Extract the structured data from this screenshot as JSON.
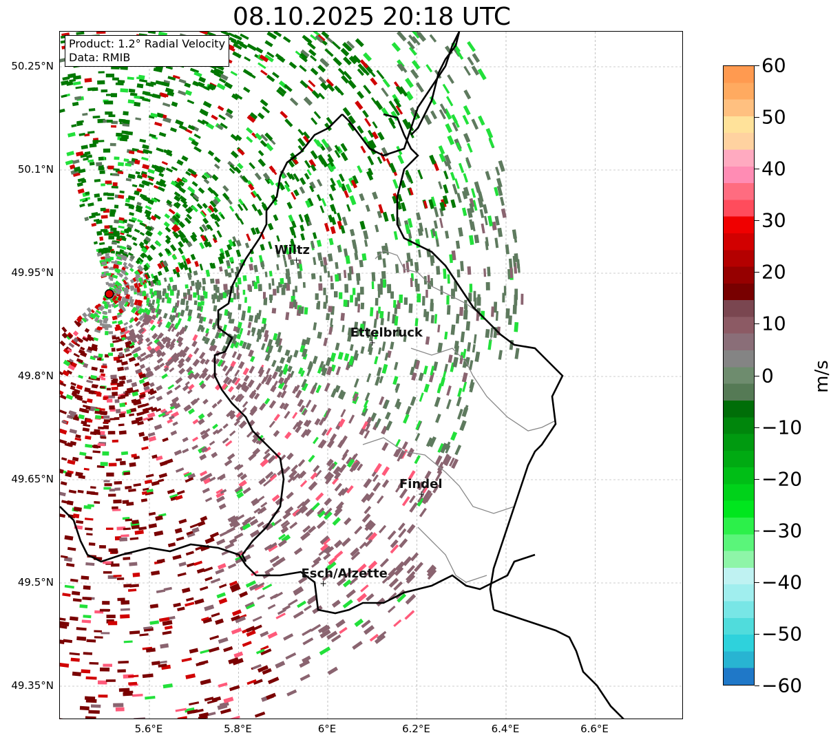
{
  "title": "08.10.2025 20:18 UTC",
  "info": {
    "product": "Product: 1.2° Radial Velocity",
    "data": "Data: RMIB"
  },
  "axes": {
    "lat_ticks": [
      "50.25°N",
      "50.1°N",
      "49.95°N",
      "49.8°N",
      "49.65°N",
      "49.5°N",
      "49.35°N"
    ],
    "lon_ticks": [
      "5.6°E",
      "5.8°E",
      "6°E",
      "6.2°E",
      "6.4°E",
      "6.6°E"
    ]
  },
  "colorbar": {
    "unit": "m/s",
    "min": -60,
    "max": 60,
    "tick_labels": [
      "60",
      "50",
      "40",
      "30",
      "20",
      "10",
      "0",
      "−10",
      "−20",
      "−30",
      "−40",
      "−50",
      "−60"
    ],
    "colors": [
      "#1f78c8",
      "#28b4d2",
      "#2ed2dc",
      "#50dcdc",
      "#78e6e6",
      "#a0eeee",
      "#bff2f2",
      "#8ef5a8",
      "#5af57a",
      "#2cf04a",
      "#00e61e",
      "#00d21a",
      "#00be16",
      "#00aa12",
      "#009a10",
      "#00860c",
      "#006e08",
      "#557a55",
      "#6e8c6e",
      "#848484",
      "#8a6e78",
      "#8c5a64",
      "#7a4650",
      "#780000",
      "#960000",
      "#b40000",
      "#d20000",
      "#f00000",
      "#ff4c5c",
      "#ff6c80",
      "#ff8cb4",
      "#ffaac0",
      "#ffd2a0",
      "#ffe29a",
      "#ffc080",
      "#ffaa60",
      "#ff9a50"
    ]
  },
  "cities": [
    {
      "name": "Wiltz",
      "lon": 5.93,
      "lat": 49.97
    },
    {
      "name": "Ettelbruck",
      "lon": 6.1,
      "lat": 49.85
    },
    {
      "name": "Findel",
      "lon": 6.21,
      "lat": 49.63
    },
    {
      "name": "Esch/Alzette",
      "lon": 5.99,
      "lat": 49.5
    }
  ],
  "radar_site": {
    "lon": 5.51,
    "lat": 49.92
  },
  "palette": {
    "dark_green": "#007800",
    "bright_green": "#22e03a",
    "gray_green": "#5e7a5e",
    "dark_red": "#7a0000",
    "red": "#d00000",
    "mauve": "#8a6470",
    "pink": "#ff5a7a"
  }
}
